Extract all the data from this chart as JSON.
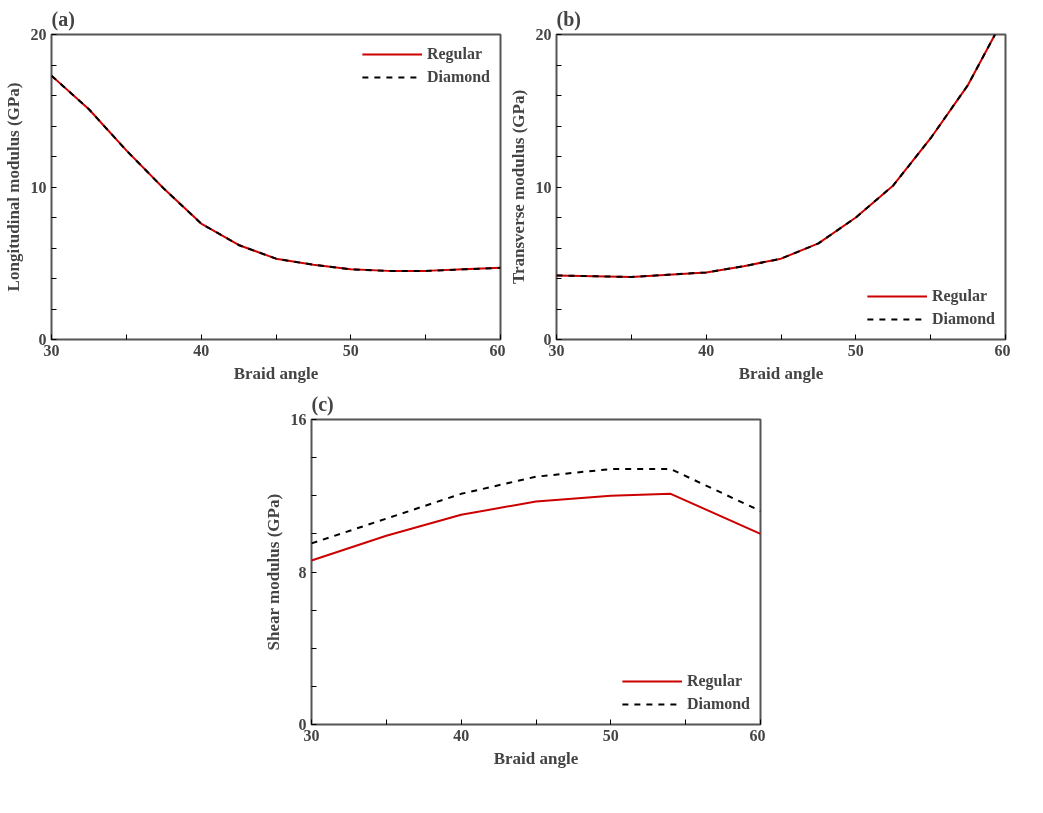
{
  "chart_data": [
    {
      "type": "line",
      "title": "(a)",
      "xlabel": "Braid angle",
      "ylabel": "Longitudinal modulus (GPa)",
      "xlim": [
        30,
        60
      ],
      "ylim": [
        0,
        20
      ],
      "xticks": [
        30,
        {
          "value": 35,
          "label": null
        },
        40,
        {
          "value": 45,
          "label": null
        },
        50,
        {
          "value": 55,
          "label": null
        },
        60
      ],
      "yticks": [
        0,
        {
          "value": 2,
          "label": null
        },
        {
          "value": 4,
          "label": null
        },
        {
          "value": 6,
          "label": null
        },
        {
          "value": 8,
          "label": null
        },
        10,
        {
          "value": 12,
          "label": null
        },
        {
          "value": 14,
          "label": null
        },
        {
          "value": 16,
          "label": null
        },
        {
          "value": 18,
          "label": null
        },
        20
      ],
      "x": [
        30,
        32.5,
        35,
        37.5,
        40,
        42.5,
        45,
        47.5,
        50,
        52.5,
        55,
        57.5,
        60
      ],
      "series": [
        {
          "name": "Regular",
          "color": "#cc0000",
          "line_style": "solid",
          "values": [
            17.3,
            15.1,
            12.4,
            9.9,
            7.6,
            6.2,
            5.3,
            4.9,
            4.6,
            4.5,
            4.5,
            4.6,
            4.7
          ]
        },
        {
          "name": "Diamond",
          "color": "#000000",
          "line_style": "dashed",
          "values": [
            17.3,
            15.1,
            12.4,
            9.9,
            7.6,
            6.2,
            5.3,
            4.9,
            4.6,
            4.5,
            4.5,
            4.6,
            4.7
          ]
        }
      ],
      "legend": "top right",
      "grid": false
    },
    {
      "type": "line",
      "title": "(b)",
      "xlabel": "Braid angle",
      "ylabel": "Transverse modulus (GPa)",
      "xlim": [
        30,
        60
      ],
      "ylim": [
        0,
        20
      ],
      "xticks": [
        30,
        {
          "value": 35,
          "label": null
        },
        40,
        {
          "value": 45,
          "label": null
        },
        50,
        {
          "value": 55,
          "label": null
        },
        60
      ],
      "yticks": [
        0,
        {
          "value": 2,
          "label": null
        },
        {
          "value": 4,
          "label": null
        },
        {
          "value": 6,
          "label": null
        },
        {
          "value": 8,
          "label": null
        },
        10,
        {
          "value": 12,
          "label": null
        },
        {
          "value": 14,
          "label": null
        },
        {
          "value": 16,
          "label": null
        },
        {
          "value": 18,
          "label": null
        },
        20
      ],
      "x": [
        30,
        35,
        40,
        42.5,
        45,
        47.5,
        50,
        52.5,
        55,
        57.5,
        59.3
      ],
      "series": [
        {
          "name": "Regular",
          "color": "#cc0000",
          "line_style": "solid",
          "values": [
            4.2,
            4.1,
            4.4,
            4.8,
            5.3,
            6.3,
            8.0,
            10.1,
            13.2,
            16.7,
            20
          ]
        },
        {
          "name": "Diamond",
          "color": "#000000",
          "line_style": "dashed",
          "values": [
            4.2,
            4.1,
            4.4,
            4.8,
            5.3,
            6.3,
            8.0,
            10.1,
            13.2,
            16.7,
            20
          ]
        }
      ],
      "legend": "bottom right",
      "grid": false
    },
    {
      "type": "line",
      "title": "(c)",
      "xlabel": "Braid angle",
      "ylabel": "Shear modulus (GPa)",
      "xlim": [
        30,
        60
      ],
      "ylim": [
        0,
        16
      ],
      "xticks": [
        30,
        {
          "value": 35,
          "label": null
        },
        40,
        {
          "value": 45,
          "label": null
        },
        50,
        {
          "value": 55,
          "label": null
        },
        60
      ],
      "yticks": [
        0,
        {
          "value": 2,
          "label": null
        },
        {
          "value": 4,
          "label": null
        },
        {
          "value": 6,
          "label": null
        },
        8,
        {
          "value": 10,
          "label": null
        },
        {
          "value": 12,
          "label": null
        },
        {
          "value": 14,
          "label": null
        },
        16
      ],
      "x": [
        30,
        35,
        40,
        45,
        50,
        54,
        60
      ],
      "series": [
        {
          "name": "Regular",
          "color": "#cc0000",
          "line_style": "solid",
          "values": [
            8.6,
            9.9,
            11.0,
            11.7,
            12.0,
            12.1,
            10.0
          ]
        },
        {
          "name": "Diamond",
          "color": "#000000",
          "line_style": "dashed",
          "values": [
            9.5,
            10.8,
            12.1,
            13.0,
            13.4,
            13.4,
            11.2
          ]
        }
      ],
      "legend": "bottom right",
      "grid": false
    }
  ]
}
